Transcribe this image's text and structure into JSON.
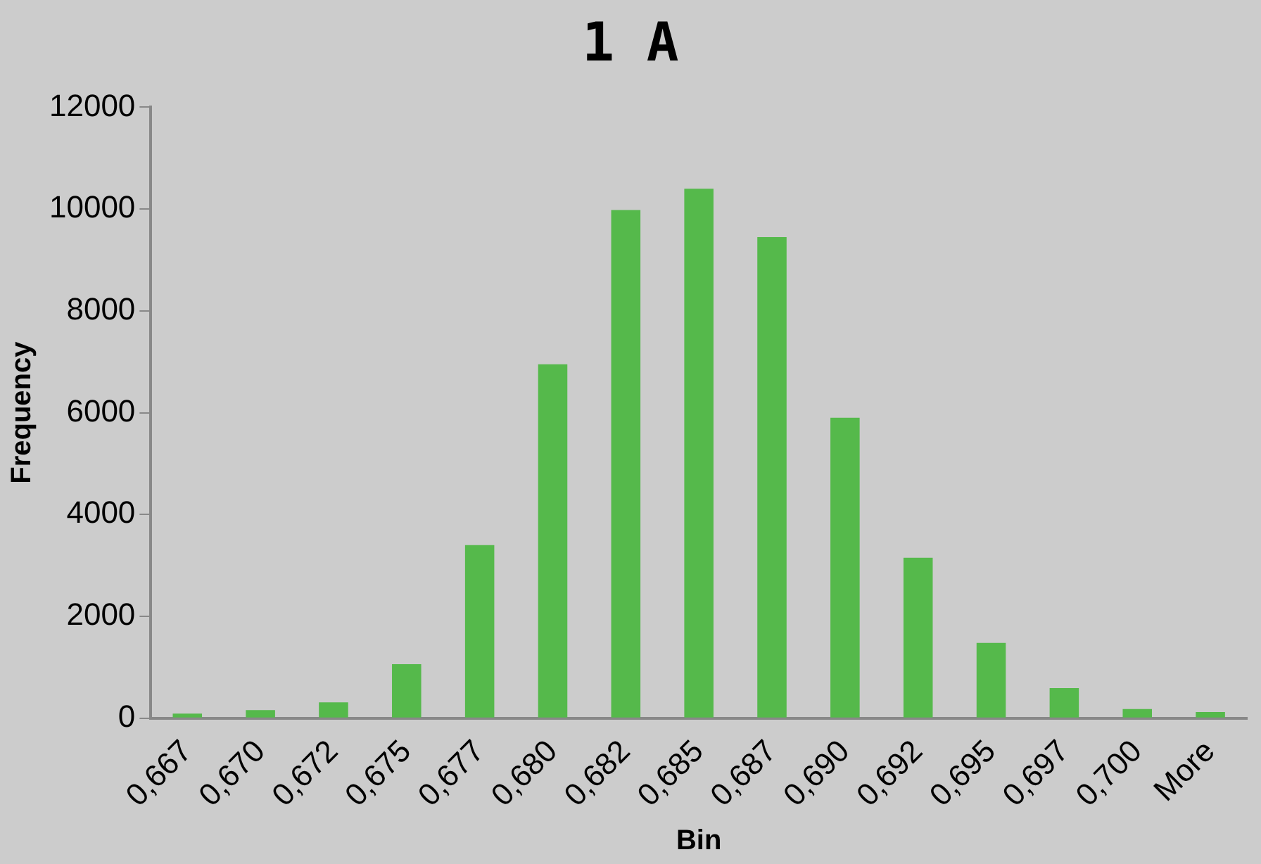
{
  "chart_data": {
    "type": "bar",
    "title": "1 A",
    "xlabel": "Bin",
    "ylabel": "Frequency",
    "categories": [
      "0,667",
      "0,670",
      "0,672",
      "0,675",
      "0,677",
      "0,680",
      "0,682",
      "0,685",
      "0,687",
      "0,690",
      "0,692",
      "0,695",
      "0,697",
      "0,700",
      "More"
    ],
    "values": [
      90,
      160,
      310,
      1060,
      3400,
      6950,
      9980,
      10400,
      9450,
      5900,
      3150,
      1480,
      590,
      180,
      120
    ],
    "color": "#55b94b",
    "ylim": [
      0,
      12000
    ],
    "yticks": [
      0,
      2000,
      4000,
      6000,
      8000,
      10000,
      12000
    ],
    "grid": false,
    "legend": false
  }
}
